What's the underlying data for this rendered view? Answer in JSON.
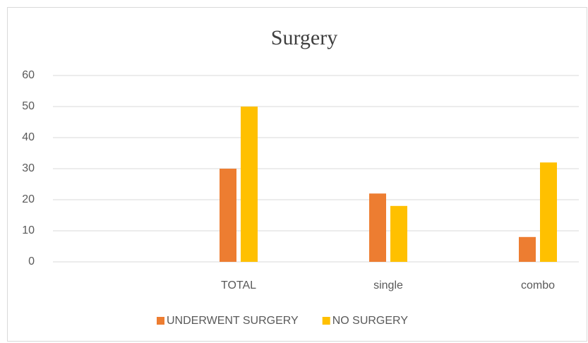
{
  "chart_data": {
    "type": "bar",
    "title": "Surgery",
    "categories": [
      null,
      "TOTAL",
      "single",
      "combo"
    ],
    "series": [
      {
        "name": "UNDERWENT SURGERY",
        "color": "#ed7d31",
        "values": [
          null,
          30,
          22,
          8
        ]
      },
      {
        "name": "NO SURGERY",
        "color": "#ffc000",
        "values": [
          null,
          50,
          18,
          32
        ]
      }
    ],
    "ylim": [
      0,
      60
    ],
    "yticks": [
      0,
      10,
      20,
      30,
      40,
      50,
      60
    ],
    "grid": true,
    "legend": "bottom"
  }
}
